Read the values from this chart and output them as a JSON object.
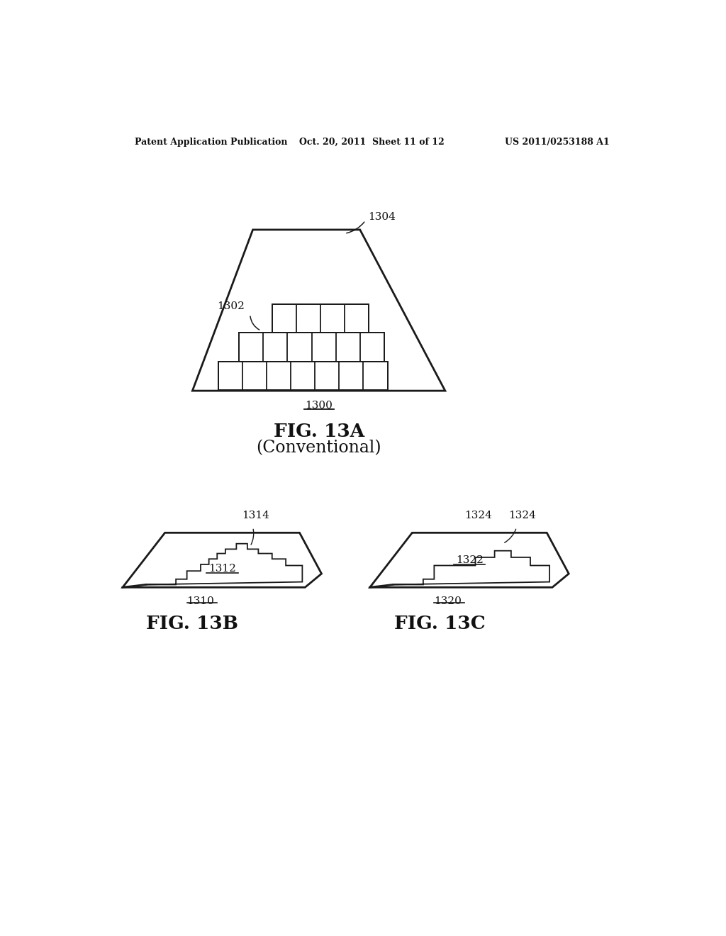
{
  "bg_color": "#ffffff",
  "header_left": "Patent Application Publication",
  "header_mid": "Oct. 20, 2011  Sheet 11 of 12",
  "header_right": "US 2011/0253188 A1",
  "fig13a": {
    "label": "FIG. 13A",
    "sublabel": "(Conventional)",
    "ref1300": "1300",
    "ref1302": "1302",
    "ref1304": "1304"
  },
  "fig13b": {
    "label": "FIG. 13B",
    "ref1310": "1310",
    "ref1312": "1312",
    "ref1314": "1314"
  },
  "fig13c": {
    "label": "FIG. 13C",
    "ref1320": "1320",
    "ref1322": "1322",
    "ref1324": "1324"
  }
}
